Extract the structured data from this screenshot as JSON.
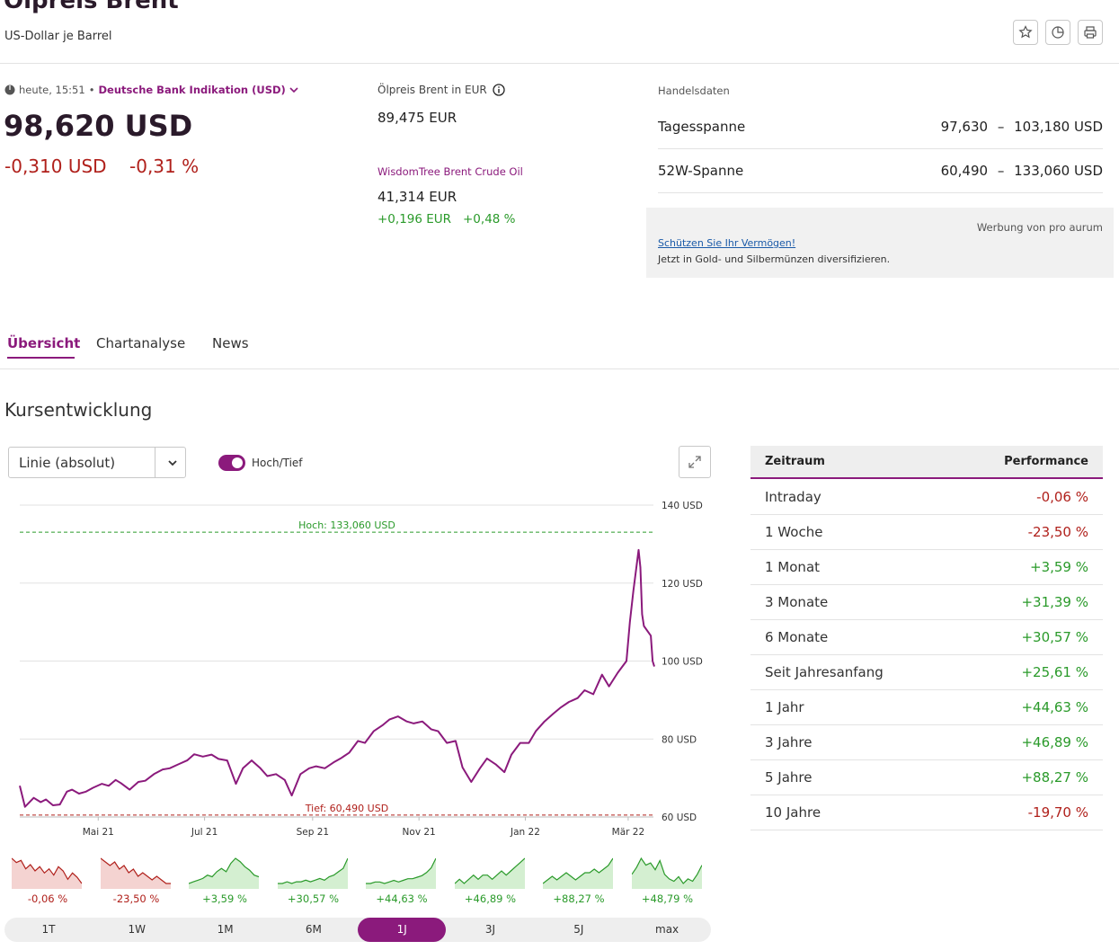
{
  "header": {
    "title": "Ölpreis Brent",
    "subtitle": "US-Dollar je Barrel",
    "buttons": [
      {
        "name": "star-icon"
      },
      {
        "name": "pie-chart-icon"
      },
      {
        "name": "print-icon"
      }
    ]
  },
  "quote": {
    "time": "heute, 15:51",
    "separator": "•",
    "source": "Deutsche Bank Indikation (USD)",
    "price": "98,620 USD",
    "change_abs": "-0,310 USD",
    "change_pct": "-0,31 %"
  },
  "eur": {
    "label": "Ölpreis Brent in EUR",
    "value": "89,475 EUR",
    "etf_name": "WisdomTree Brent Crude Oil",
    "etf_value": "41,314 EUR",
    "etf_change_abs": "+0,196 EUR",
    "etf_change_pct": "+0,48 %"
  },
  "handelsdaten": {
    "label": "Handelsdaten",
    "rows": [
      {
        "label": "Tagesspanne",
        "low": "97,630",
        "dash": "–",
        "high": "103,180 USD"
      },
      {
        "label": "52W-Spanne",
        "low": "60,490",
        "dash": "–",
        "high": "133,060 USD"
      }
    ]
  },
  "ad": {
    "sponsor": "Werbung von pro aurum",
    "link": "Schützen Sie Ihr Vermögen!",
    "text": "Jetzt in Gold- und Silbermünzen diversifizieren."
  },
  "tabs": [
    "Übersicht",
    "Chartanalyse",
    "News"
  ],
  "section_title": "Kursentwicklung",
  "controls": {
    "chart_type": "Linie (absolut)",
    "toggle_label": "Hoch/Tief",
    "toggle_on": true
  },
  "chart_data": {
    "type": "line",
    "y_ticks": [
      "140 USD",
      "120 USD",
      "100 USD",
      "80 USD",
      "60 USD"
    ],
    "ylim": [
      60,
      140
    ],
    "x_ticks": [
      "Mai 21",
      "Jul 21",
      "Sep 21",
      "Nov 21",
      "Jan 22",
      "Mär 22"
    ],
    "high_label": "Hoch: 133,060 USD",
    "low_label": "Tief: 60,490 USD",
    "high_value": 133.06,
    "low_value": 60.49,
    "line_color": "#8b1a7c",
    "high_color": "#2a9a2a",
    "low_color": "#b0201b",
    "series": [
      {
        "x": [
          "2021-03-17",
          "2021-03-20",
          "2021-03-25",
          "2021-03-29",
          "2021-04-01",
          "2021-04-05",
          "2021-04-09",
          "2021-04-13",
          "2021-04-16",
          "2021-04-20",
          "2021-04-24",
          "2021-04-28",
          "2021-05-03",
          "2021-05-07",
          "2021-05-11",
          "2021-05-14",
          "2021-05-19",
          "2021-05-24",
          "2021-05-28",
          "2021-06-02",
          "2021-06-07",
          "2021-06-11",
          "2021-06-16",
          "2021-06-21",
          "2021-06-25",
          "2021-06-30",
          "2021-07-05",
          "2021-07-09",
          "2021-07-14",
          "2021-07-19",
          "2021-07-23",
          "2021-07-28",
          "2021-08-02",
          "2021-08-06",
          "2021-08-11",
          "2021-08-16",
          "2021-08-20",
          "2021-08-25",
          "2021-08-30",
          "2021-09-03",
          "2021-09-08",
          "2021-09-13",
          "2021-09-17",
          "2021-09-22",
          "2021-09-27",
          "2021-10-01",
          "2021-10-06",
          "2021-10-11",
          "2021-10-15",
          "2021-10-20",
          "2021-10-25",
          "2021-10-29",
          "2021-11-03",
          "2021-11-08",
          "2021-11-12",
          "2021-11-17",
          "2021-11-22",
          "2021-11-26",
          "2021-12-01",
          "2021-12-06",
          "2021-12-10",
          "2021-12-15",
          "2021-12-20",
          "2021-12-24",
          "2021-12-29",
          "2022-01-03",
          "2022-01-07",
          "2022-01-12",
          "2022-01-17",
          "2022-01-21",
          "2022-01-26",
          "2022-01-31",
          "2022-02-04",
          "2022-02-09",
          "2022-02-14",
          "2022-02-18",
          "2022-02-23",
          "2022-02-28",
          "2022-03-02",
          "2022-03-04",
          "2022-03-07",
          "2022-03-08",
          "2022-03-09",
          "2022-03-10",
          "2022-03-14",
          "2022-03-15",
          "2022-03-16"
        ],
        "values": [
          68.0,
          62.6,
          64.9,
          63.8,
          64.5,
          63.0,
          63.2,
          66.5,
          67.0,
          66.0,
          66.5,
          67.5,
          68.5,
          68.0,
          69.5,
          68.7,
          67.0,
          69.0,
          69.3,
          71.0,
          72.2,
          72.5,
          73.5,
          74.5,
          76.1,
          75.5,
          76.0,
          74.9,
          74.5,
          68.5,
          72.5,
          74.5,
          72.5,
          70.5,
          71.0,
          69.5,
          65.5,
          71.0,
          72.5,
          73.0,
          72.5,
          74.0,
          75.0,
          76.5,
          79.5,
          79.0,
          82.0,
          83.5,
          85.0,
          85.8,
          84.5,
          84.0,
          84.5,
          82.5,
          82.0,
          79.0,
          79.5,
          72.7,
          69.0,
          72.5,
          75.0,
          73.5,
          71.5,
          76.0,
          79.0,
          79.0,
          82.0,
          84.5,
          86.5,
          88.0,
          89.5,
          90.5,
          92.5,
          91.5,
          96.5,
          93.5,
          97.0,
          100.0,
          110.0,
          118.0,
          128.5,
          124.0,
          112.0,
          109.0,
          106.5,
          100.0,
          98.6
        ]
      }
    ]
  },
  "mini_charts": [
    {
      "label": "-0,06 %",
      "trend": "down",
      "values": [
        1.0,
        0.98,
        0.99,
        0.95,
        0.97,
        0.94,
        0.96,
        0.93,
        0.95,
        0.92,
        0.96,
        0.94,
        0.9,
        0.93,
        0.91,
        0.88
      ]
    },
    {
      "label": "-23,50 %",
      "trend": "down",
      "values": [
        1.0,
        0.99,
        0.98,
        0.99,
        0.97,
        0.98,
        0.96,
        0.97,
        0.95,
        0.96,
        0.95,
        0.94,
        0.95,
        0.94,
        0.93,
        0.93
      ]
    },
    {
      "label": "+3,59 %",
      "trend": "up",
      "values": [
        0.9,
        0.91,
        0.92,
        0.93,
        0.95,
        0.94,
        0.97,
        0.99,
        0.97,
        1.02,
        1.05,
        1.03,
        1.0,
        0.98,
        0.95,
        0.94
      ]
    },
    {
      "label": "+30,57 %",
      "trend": "up",
      "values": [
        0.9,
        0.9,
        0.91,
        0.9,
        0.91,
        0.91,
        0.92,
        0.91,
        0.92,
        0.93,
        0.92,
        0.94,
        0.95,
        0.97,
        0.99,
        1.05
      ]
    },
    {
      "label": "+44,63 %",
      "trend": "up",
      "values": [
        0.9,
        0.9,
        0.91,
        0.91,
        0.9,
        0.91,
        0.92,
        0.91,
        0.92,
        0.93,
        0.93,
        0.94,
        0.95,
        0.97,
        1.0,
        1.06
      ]
    },
    {
      "label": "+46,89 %",
      "trend": "up",
      "values": [
        0.9,
        0.91,
        0.9,
        0.91,
        0.92,
        0.91,
        0.92,
        0.92,
        0.91,
        0.92,
        0.93,
        0.92,
        0.93,
        0.94,
        0.95,
        0.96
      ]
    },
    {
      "label": "+88,27 %",
      "trend": "up",
      "values": [
        0.9,
        0.91,
        0.92,
        0.91,
        0.92,
        0.93,
        0.92,
        0.91,
        0.92,
        0.93,
        0.93,
        0.94,
        0.93,
        0.94,
        0.95,
        0.97
      ]
    },
    {
      "label": "+48,79 %",
      "trend": "up",
      "values": [
        0.95,
        0.98,
        1.02,
        0.99,
        1.0,
        0.97,
        1.01,
        0.95,
        0.93,
        0.92,
        0.94,
        0.91,
        0.93,
        0.92,
        0.95,
        0.99
      ]
    }
  ],
  "periods": [
    "1T",
    "1W",
    "1M",
    "6M",
    "1J",
    "3J",
    "5J",
    "max"
  ],
  "active_period": "1J",
  "performance": {
    "header_left": "Zeitraum",
    "header_right": "Performance",
    "rows": [
      {
        "label": "Intraday",
        "value": "-0,06 %",
        "trend": "down"
      },
      {
        "label": "1 Woche",
        "value": "-23,50 %",
        "trend": "down"
      },
      {
        "label": "1 Monat",
        "value": "+3,59 %",
        "trend": "up"
      },
      {
        "label": "3 Monate",
        "value": "+31,39 %",
        "trend": "up"
      },
      {
        "label": "6 Monate",
        "value": "+30,57 %",
        "trend": "up"
      },
      {
        "label": "Seit Jahresanfang",
        "value": "+25,61 %",
        "trend": "up"
      },
      {
        "label": "1 Jahr",
        "value": "+44,63 %",
        "trend": "up"
      },
      {
        "label": "3 Jahre",
        "value": "+46,89 %",
        "trend": "up"
      },
      {
        "label": "5 Jahre",
        "value": "+88,27 %",
        "trend": "up"
      },
      {
        "label": "10 Jahre",
        "value": "-19,70 %",
        "trend": "down"
      }
    ]
  },
  "colors": {
    "accent": "#8b1a7c",
    "positive": "#2a9a2a",
    "negative": "#b0201b"
  }
}
